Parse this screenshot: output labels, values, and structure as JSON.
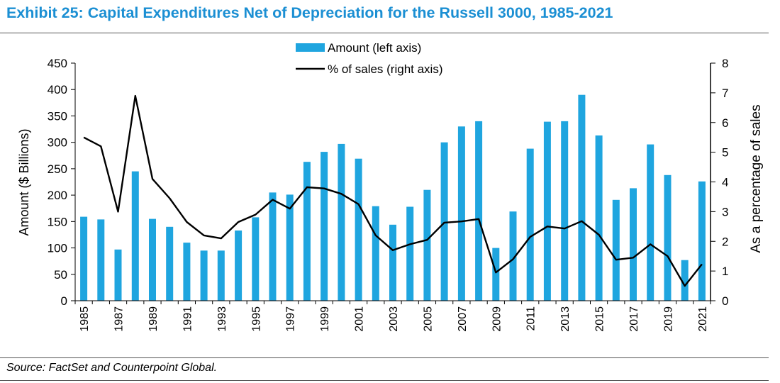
{
  "header": {
    "title": "Exhibit 25: Capital Expenditures Net of Depreciation for the Russell 3000, 1985-2021"
  },
  "footer": {
    "source": "Source: FactSet and Counterpoint Global."
  },
  "colors": {
    "title": "#1b8fd3",
    "bar": "#1fa5df",
    "line": "#000000"
  },
  "chart_data": {
    "type": "bar",
    "title": "Exhibit 25: Capital Expenditures Net of Depreciation for the Russell 3000, 1985-2021",
    "categories": [
      1985,
      1986,
      1987,
      1988,
      1989,
      1990,
      1991,
      1992,
      1993,
      1994,
      1995,
      1996,
      1997,
      1998,
      1999,
      2000,
      2001,
      2002,
      2003,
      2004,
      2005,
      2006,
      2007,
      2008,
      2009,
      2010,
      2011,
      2012,
      2013,
      2014,
      2015,
      2016,
      2017,
      2018,
      2019,
      2020,
      2021
    ],
    "x_tick_labels": [
      "1985",
      "1987",
      "1989",
      "1991",
      "1993",
      "1995",
      "1997",
      "1999",
      "2001",
      "2003",
      "2005",
      "2007",
      "2009",
      "2011",
      "2013",
      "2015",
      "2017",
      "2019",
      "2021"
    ],
    "series": [
      {
        "name": "Amount (left axis)",
        "type": "bar",
        "axis": "left",
        "values": [
          159,
          154,
          97,
          245,
          155,
          140,
          110,
          95,
          95,
          133,
          158,
          205,
          201,
          263,
          282,
          297,
          269,
          179,
          144,
          178,
          210,
          300,
          330,
          340,
          100,
          169,
          288,
          339,
          340,
          390,
          313,
          191,
          213,
          296,
          238,
          77,
          226
        ]
      },
      {
        "name": "% of sales (right axis)",
        "type": "line",
        "axis": "right",
        "values": [
          5.5,
          5.2,
          3.0,
          6.9,
          4.1,
          3.45,
          2.65,
          2.2,
          2.1,
          2.65,
          2.9,
          3.4,
          3.1,
          3.82,
          3.78,
          3.6,
          3.25,
          2.2,
          1.7,
          1.9,
          2.05,
          2.63,
          2.67,
          2.75,
          0.95,
          1.4,
          2.15,
          2.5,
          2.43,
          2.68,
          2.22,
          1.38,
          1.45,
          1.9,
          1.5,
          0.5,
          1.23
        ]
      }
    ],
    "ylabel": "Amount ($ Billions)",
    "y2label": "As a percentage of sales",
    "ylim": [
      0,
      450
    ],
    "y2lim": [
      0,
      8
    ],
    "y_ticks": [
      "0",
      "50",
      "100",
      "150",
      "200",
      "250",
      "300",
      "350",
      "400",
      "450"
    ],
    "y2_ticks": [
      "0",
      "1",
      "2",
      "3",
      "4",
      "5",
      "6",
      "7",
      "8"
    ],
    "legend_position": "top-center",
    "grid": false
  }
}
